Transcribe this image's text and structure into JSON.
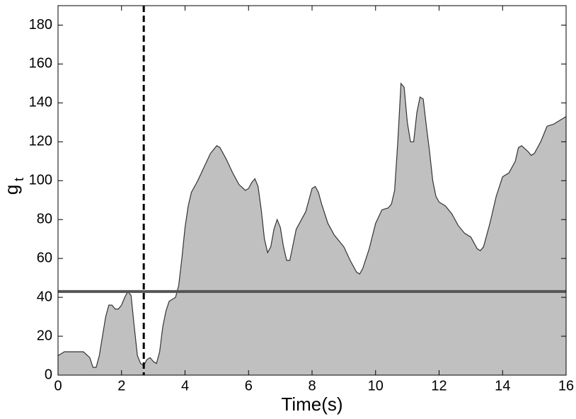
{
  "chart_data": {
    "type": "area",
    "xlabel": "Time(s)",
    "ylabel": {
      "base": "g",
      "sub": "t"
    },
    "x": [
      0,
      0.2,
      0.5,
      0.8,
      1.0,
      1.1,
      1.2,
      1.3,
      1.5,
      1.6,
      1.7,
      1.8,
      1.9,
      2.0,
      2.1,
      2.2,
      2.3,
      2.4,
      2.5,
      2.6,
      2.7,
      2.8,
      2.9,
      3.0,
      3.1,
      3.2,
      3.3,
      3.4,
      3.5,
      3.6,
      3.7,
      3.8,
      3.9,
      4.0,
      4.1,
      4.2,
      4.4,
      4.6,
      4.8,
      5.0,
      5.1,
      5.3,
      5.5,
      5.7,
      5.9,
      6.0,
      6.1,
      6.2,
      6.3,
      6.4,
      6.5,
      6.6,
      6.7,
      6.8,
      6.9,
      7.0,
      7.1,
      7.2,
      7.3,
      7.4,
      7.5,
      7.6,
      7.8,
      7.9,
      8.0,
      8.1,
      8.2,
      8.3,
      8.5,
      8.7,
      9.0,
      9.2,
      9.4,
      9.5,
      9.6,
      9.8,
      10.0,
      10.2,
      10.4,
      10.5,
      10.6,
      10.7,
      10.8,
      10.9,
      11.0,
      11.1,
      11.2,
      11.3,
      11.4,
      11.5,
      11.6,
      11.7,
      11.8,
      11.9,
      12.0,
      12.2,
      12.4,
      12.6,
      12.8,
      13.0,
      13.2,
      13.3,
      13.4,
      13.6,
      13.8,
      14.0,
      14.2,
      14.4,
      14.5,
      14.6,
      14.8,
      14.9,
      15.0,
      15.2,
      15.4,
      15.6,
      15.8,
      16.0
    ],
    "values": [
      10,
      12,
      12,
      12,
      9,
      4,
      4,
      10,
      30,
      36,
      36,
      34,
      34,
      36,
      40,
      43,
      41,
      25,
      10,
      6,
      5,
      8,
      9,
      7,
      6,
      12,
      25,
      33,
      38,
      39,
      40,
      46,
      60,
      76,
      87,
      94,
      100,
      107,
      114,
      118,
      117,
      111,
      104,
      98,
      95,
      96,
      99,
      101,
      97,
      85,
      70,
      63,
      66,
      75,
      80,
      76,
      66,
      59,
      59,
      67,
      75,
      78,
      84,
      90,
      96,
      97,
      94,
      88,
      78,
      72,
      66,
      59,
      53,
      52,
      55,
      65,
      78,
      85,
      86,
      88,
      95,
      120,
      150,
      148,
      130,
      120,
      120,
      135,
      143,
      142,
      128,
      115,
      100,
      92,
      89,
      87,
      83,
      77,
      73,
      71,
      65,
      64,
      66,
      78,
      92,
      102,
      104,
      110,
      117,
      118,
      115,
      113,
      114,
      120,
      128,
      129,
      131,
      133
    ],
    "color": "#c0c0c0",
    "line_color": "#333333",
    "threshold": 43,
    "threshold_color": "#555555",
    "marker_x": 2.7,
    "xlim": [
      0,
      16
    ],
    "xticks": [
      0,
      2,
      4,
      6,
      8,
      10,
      12,
      14,
      16
    ],
    "ylim": [
      0,
      190
    ],
    "yticks": [
      0,
      20,
      40,
      60,
      80,
      100,
      120,
      140,
      160,
      180
    ],
    "grid": false
  }
}
